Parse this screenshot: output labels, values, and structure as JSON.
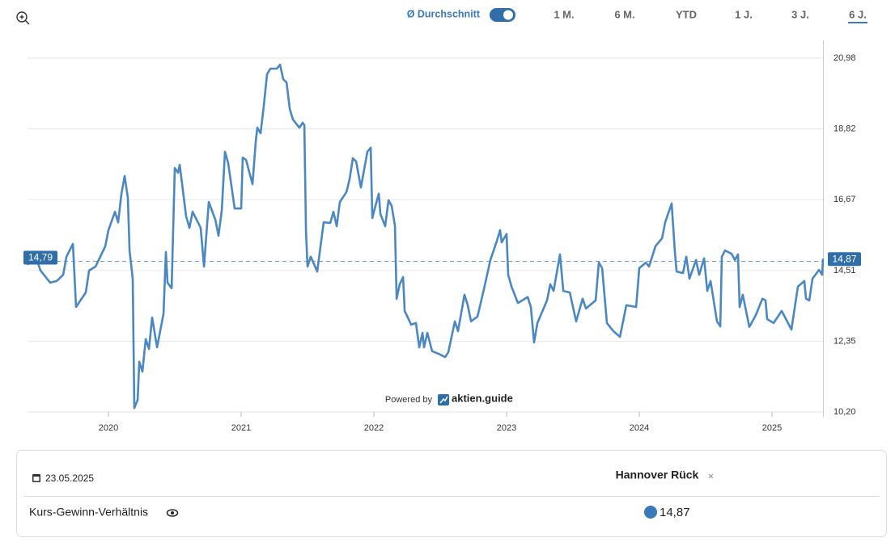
{
  "toolbar": {
    "average_toggle": "Ø Durchschnitt",
    "ranges": [
      "1 M.",
      "6 M.",
      "YTD",
      "1 J.",
      "3 J.",
      "6 J."
    ],
    "active_range": 5
  },
  "watermark": {
    "prefix": "Powered by",
    "brand": "aktien.guide"
  },
  "chart_data": {
    "type": "line",
    "xlim": [
      2019.39,
      2025.384
    ],
    "xticks": [
      2020,
      2021,
      2022,
      2023,
      2024,
      2025
    ],
    "ylim": [
      10.2,
      20.98
    ],
    "yticks": [
      {
        "value": 10.2,
        "label": "10,20"
      },
      {
        "value": 12.35,
        "label": "12,35"
      },
      {
        "value": 14.51,
        "label": "14,51"
      },
      {
        "value": 16.67,
        "label": "16,67"
      },
      {
        "value": 18.82,
        "label": "18,82"
      },
      {
        "value": 20.98,
        "label": "20,98"
      }
    ],
    "grid": true,
    "average": {
      "value": 14.79,
      "label": "14,79"
    },
    "current": {
      "value": 14.87,
      "label": "14,87"
    },
    "series": [
      {
        "name": "Kurs-Gewinn-Verhältnis",
        "color": "#4b87c1",
        "x": [
          2019.39,
          2019.439,
          2019.488,
          2019.561,
          2019.61,
          2019.659,
          2019.683,
          2019.732,
          2019.756,
          2019.829,
          2019.854,
          2019.903,
          2019.976,
          2020.0,
          2020.049,
          2020.073,
          2020.098,
          2020.122,
          2020.146,
          2020.159,
          2020.183,
          2020.195,
          2020.22,
          2020.232,
          2020.256,
          2020.281,
          2020.305,
          2020.329,
          2020.366,
          2020.415,
          2020.433,
          2020.445,
          2020.476,
          2020.5,
          2020.524,
          2020.537,
          2020.585,
          2020.61,
          2020.634,
          2020.695,
          2020.72,
          2020.756,
          2020.805,
          2020.829,
          2020.854,
          2020.878,
          2020.902,
          2020.951,
          2021.0,
          2021.012,
          2021.037,
          2021.085,
          2021.11,
          2021.122,
          2021.146,
          2021.171,
          2021.195,
          2021.22,
          2021.268,
          2021.293,
          2021.317,
          2021.342,
          2021.366,
          2021.39,
          2021.439,
          2021.463,
          2021.476,
          2021.488,
          2021.5,
          2021.524,
          2021.573,
          2021.598,
          2021.622,
          2021.671,
          2021.695,
          2021.72,
          2021.744,
          2021.793,
          2021.817,
          2021.841,
          2021.866,
          2021.902,
          2021.951,
          2021.976,
          2021.988,
          2022.012,
          2022.037,
          2022.049,
          2022.085,
          2022.11,
          2022.134,
          2022.159,
          2022.171,
          2022.195,
          2022.22,
          2022.232,
          2022.281,
          2022.317,
          2022.342,
          2022.366,
          2022.378,
          2022.403,
          2022.439,
          2022.488,
          2022.537,
          2022.561,
          2022.61,
          2022.634,
          2022.683,
          2022.707,
          2022.732,
          2022.781,
          2022.829,
          2022.878,
          2022.927,
          2022.951,
          2022.963,
          2023.0,
          2023.012,
          2023.037,
          2023.085,
          2023.159,
          2023.183,
          2023.207,
          2023.232,
          2023.305,
          2023.329,
          2023.354,
          2023.402,
          2023.427,
          2023.476,
          2023.524,
          2023.573,
          2023.598,
          2023.671,
          2023.695,
          2023.72,
          2023.756,
          2023.805,
          2023.854,
          2023.902,
          2023.976,
          2024.0,
          2024.049,
          2024.073,
          2024.122,
          2024.171,
          2024.195,
          2024.244,
          2024.268,
          2024.281,
          2024.329,
          2024.354,
          2024.378,
          2024.427,
          2024.451,
          2024.488,
          2024.512,
          2024.537,
          2024.585,
          2024.61,
          2024.622,
          2024.646,
          2024.695,
          2024.72,
          2024.744,
          2024.756,
          2024.78,
          2024.829,
          2024.878,
          2024.927,
          2024.951,
          2024.963,
          2025.012,
          2025.073,
          2025.146,
          2025.195,
          2025.244,
          2025.256,
          2025.281,
          2025.305,
          2025.354,
          2025.378,
          2025.384
        ],
        "values": [
          14.68,
          15.07,
          14.51,
          14.14,
          14.19,
          14.38,
          14.93,
          15.32,
          13.4,
          13.84,
          14.51,
          14.63,
          15.25,
          15.74,
          16.3,
          15.98,
          16.85,
          17.39,
          16.72,
          15.12,
          14.26,
          10.32,
          10.57,
          11.73,
          11.43,
          12.42,
          12.12,
          13.08,
          12.17,
          13.2,
          15.07,
          14.14,
          13.97,
          17.63,
          17.49,
          17.73,
          16.16,
          15.81,
          16.3,
          15.81,
          14.63,
          16.6,
          16.06,
          15.57,
          16.35,
          18.13,
          17.78,
          16.4,
          16.4,
          17.95,
          17.88,
          17.14,
          18.45,
          18.86,
          18.69,
          19.55,
          20.49,
          20.66,
          20.66,
          20.78,
          20.34,
          20.24,
          19.43,
          19.11,
          18.86,
          19.01,
          18.94,
          15.74,
          14.63,
          14.93,
          14.48,
          15.25,
          15.98,
          15.96,
          16.3,
          15.86,
          16.6,
          16.9,
          17.29,
          17.93,
          17.83,
          17.04,
          18.13,
          18.25,
          16.11,
          16.48,
          16.85,
          16.23,
          15.86,
          16.65,
          16.48,
          15.86,
          13.65,
          14.09,
          14.31,
          13.28,
          12.86,
          12.91,
          12.17,
          12.61,
          12.17,
          12.61,
          12.05,
          11.97,
          11.87,
          12.02,
          12.96,
          12.66,
          13.77,
          13.45,
          12.96,
          13.11,
          13.94,
          14.83,
          15.42,
          15.74,
          15.37,
          15.62,
          14.38,
          14.02,
          13.52,
          13.7,
          13.4,
          12.32,
          12.91,
          13.6,
          14.09,
          13.89,
          15.0,
          13.89,
          13.84,
          12.96,
          13.65,
          13.35,
          13.6,
          14.75,
          14.58,
          12.91,
          12.66,
          12.49,
          13.45,
          13.4,
          14.58,
          14.75,
          14.63,
          15.25,
          15.49,
          15.98,
          16.55,
          15.07,
          14.48,
          14.43,
          14.93,
          14.26,
          14.83,
          14.38,
          14.88,
          13.89,
          14.19,
          12.96,
          12.81,
          14.93,
          15.12,
          15.02,
          14.83,
          15.0,
          13.4,
          13.77,
          12.79,
          13.15,
          13.65,
          13.6,
          13.03,
          12.91,
          13.28,
          12.71,
          14.02,
          14.19,
          13.65,
          13.6,
          14.26,
          14.53,
          14.38,
          14.87
        ]
      }
    ]
  },
  "table": {
    "date": "23.05.2025",
    "company": "Hannover Rück",
    "metric": "Kurs-Gewinn-Verhältnis",
    "value": "14,87"
  }
}
